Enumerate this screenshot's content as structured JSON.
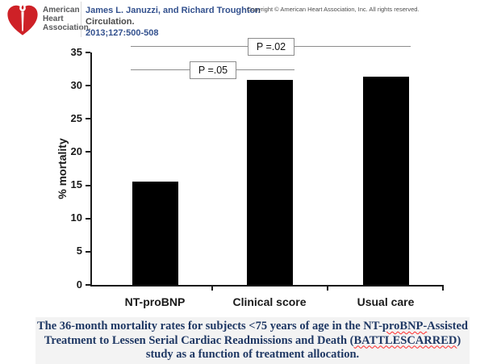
{
  "header": {
    "logo": {
      "line1": "American",
      "line2": "Heart",
      "line3": "Association."
    },
    "citation_authors": "James L. Januzzi, and Richard Troughton ",
    "citation_journal": "Circulation.",
    "citation_ref": "2013;127:500-508",
    "copyright": "Copyright © American Heart Association, Inc. All rights reserved."
  },
  "chart_data": {
    "type": "bar",
    "categories": [
      "NT-proBNP",
      "Clinical score",
      "Usual care"
    ],
    "values": [
      15.5,
      30.9,
      31.3
    ],
    "title": "",
    "xlabel": "",
    "ylabel": "% mortality",
    "ylim": [
      0,
      35
    ],
    "ytick_step": 5,
    "grid": false,
    "legend": false,
    "bar_color": "#000000",
    "annotations": [
      {
        "label": "P =.05",
        "from_category": 0,
        "to_category": 1,
        "y_value": 32.4
      },
      {
        "label": "P =.02",
        "from_category": 0,
        "to_category": 2,
        "y_value": 35.9
      }
    ]
  },
  "caption": {
    "lines": [
      {
        "parts": [
          {
            "text": "The 36-month mortality rates for subjects <75 years of age in the NT-",
            "wavy": false
          },
          {
            "text": "proBNP-",
            "wavy": true
          },
          {
            "text": "Assisted",
            "wavy": false
          }
        ]
      },
      {
        "parts": [
          {
            "text": "Treatment to Lessen Serial Cardiac Readmissions and Death (",
            "wavy": false
          },
          {
            "text": "BATTLESCARRED",
            "wavy": true
          },
          {
            "text": ")",
            "wavy": false
          }
        ]
      },
      {
        "parts": [
          {
            "text": "study as a function of treatment allocation.",
            "wavy": false
          }
        ]
      }
    ]
  },
  "colors": {
    "logo_red": "#ce2127",
    "citation_blue": "#33518e",
    "caption_navy": "#1f3864",
    "bar_black": "#000000",
    "sig_gray": "#8c8c8c",
    "caption_bg": "#f3f3f3"
  }
}
